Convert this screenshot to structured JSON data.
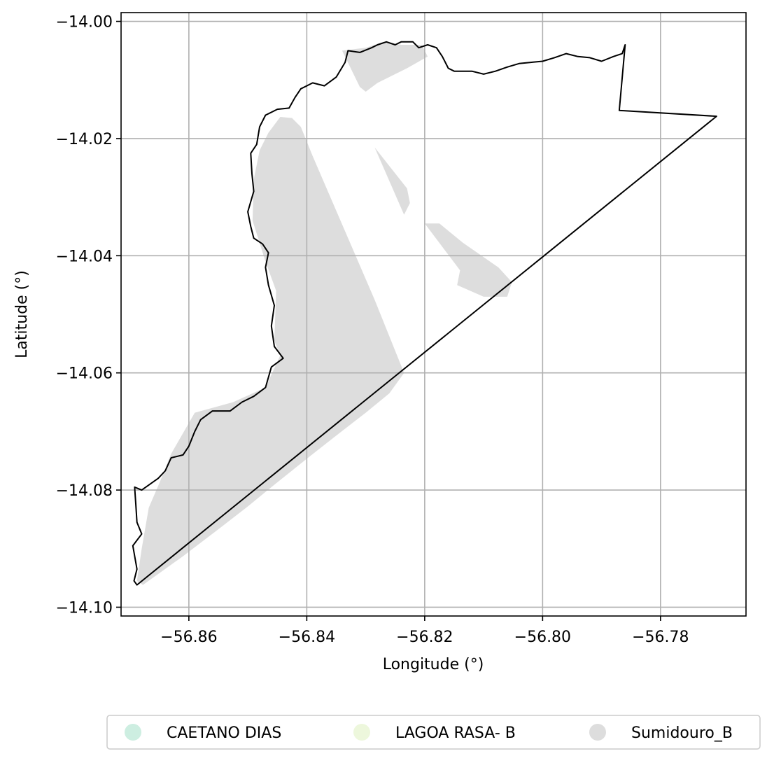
{
  "chart_data": {
    "type": "map",
    "xlabel": "Longitude (°)",
    "ylabel": "Latitude (°)",
    "xlim": [
      -56.8715,
      -56.7655
    ],
    "ylim": [
      -14.1015,
      -13.9985
    ],
    "xticks": [
      -56.86,
      -56.84,
      -56.82,
      -56.8,
      -56.78
    ],
    "xtick_labels": [
      "−56.86",
      "−56.84",
      "−56.82",
      "−56.80",
      "−56.78"
    ],
    "yticks": [
      -14.0,
      -14.02,
      -14.04,
      -14.06,
      -14.08,
      -14.1
    ],
    "ytick_labels": [
      "−14.00",
      "−14.02",
      "−14.04",
      "−14.06",
      "−14.08",
      "−14.10"
    ],
    "grid": true,
    "legend_position": "bottom-center",
    "legend": [
      {
        "name": "CAETANO DIAS",
        "color": "#cdeee1"
      },
      {
        "name": "LAGOA RASA- B",
        "color": "#edf7dc"
      },
      {
        "name": "Sumidouro_B",
        "color": "#dddddd"
      }
    ],
    "layers": [
      {
        "name": "Sumidouro_B",
        "kind": "fill",
        "color": "#dddddd",
        "polygons": [
          [
            [
              -56.8688,
              -14.0955
            ],
            [
              -56.8678,
              -14.0962
            ],
            [
              -56.861,
              -14.0913
            ],
            [
              -56.855,
              -14.0867
            ],
            [
              -56.85,
              -14.0828
            ],
            [
              -56.8455,
              -14.0791
            ],
            [
              -56.8398,
              -14.0745
            ],
            [
              -56.835,
              -14.0707
            ],
            [
              -56.83,
              -14.0668
            ],
            [
              -56.826,
              -14.0635
            ],
            [
              -56.8235,
              -14.06
            ],
            [
              -56.8285,
              -14.0475
            ],
            [
              -56.8345,
              -14.0335
            ],
            [
              -56.839,
              -14.023
            ],
            [
              -56.841,
              -14.018
            ],
            [
              -56.8425,
              -14.0165
            ],
            [
              -56.8445,
              -14.0163
            ],
            [
              -56.8465,
              -14.019
            ],
            [
              -56.848,
              -14.022
            ],
            [
              -56.849,
              -14.027
            ],
            [
              -56.8492,
              -14.034
            ],
            [
              -56.847,
              -14.041
            ],
            [
              -56.8452,
              -14.046
            ],
            [
              -56.8455,
              -14.0545
            ],
            [
              -56.8445,
              -14.057
            ],
            [
              -56.847,
              -14.0625
            ],
            [
              -56.8525,
              -14.065
            ],
            [
              -56.859,
              -14.0668
            ],
            [
              -56.863,
              -14.0738
            ],
            [
              -56.865,
              -14.0788
            ],
            [
              -56.8668,
              -14.083
            ],
            [
              -56.868,
              -14.09
            ],
            [
              -56.8688,
              -14.0955
            ]
          ],
          [
            [
              -56.834,
              -14.005
            ],
            [
              -56.83,
              -14.0045
            ],
            [
              -56.827,
              -14.0035
            ],
            [
              -56.824,
              -14.004
            ],
            [
              -56.8205,
              -14.004
            ],
            [
              -56.8195,
              -14.006
            ],
            [
              -56.823,
              -14.008
            ],
            [
              -56.828,
              -14.0105
            ],
            [
              -56.83,
              -14.012
            ],
            [
              -56.831,
              -14.0112
            ]
          ],
          [
            [
              -56.8285,
              -14.0215
            ],
            [
              -56.823,
              -14.0285
            ],
            [
              -56.8225,
              -14.031
            ],
            [
              -56.8235,
              -14.033
            ]
          ],
          [
            [
              -56.82,
              -14.0345
            ],
            [
              -56.814,
              -14.0425
            ],
            [
              -56.8145,
              -14.045
            ],
            [
              -56.81,
              -14.047
            ],
            [
              -56.806,
              -14.047
            ],
            [
              -56.8052,
              -14.0445
            ],
            [
              -56.8075,
              -14.042
            ],
            [
              -56.8135,
              -14.0378
            ],
            [
              -56.8175,
              -14.0345
            ]
          ]
        ]
      },
      {
        "name": "boundary",
        "kind": "outline",
        "color": "#000000",
        "polygons": [
          [
            [
              -56.8692,
              -14.0795
            ],
            [
              -56.868,
              -14.08
            ],
            [
              -56.8652,
              -14.078
            ],
            [
              -56.864,
              -14.0767
            ],
            [
              -56.863,
              -14.0745
            ],
            [
              -56.861,
              -14.074
            ],
            [
              -56.86,
              -14.0725
            ],
            [
              -56.859,
              -14.07
            ],
            [
              -56.858,
              -14.068
            ],
            [
              -56.856,
              -14.0665
            ],
            [
              -56.853,
              -14.0665
            ],
            [
              -56.851,
              -14.065
            ],
            [
              -56.849,
              -14.064
            ],
            [
              -56.847,
              -14.0625
            ],
            [
              -56.846,
              -14.059
            ],
            [
              -56.844,
              -14.0575
            ],
            [
              -56.8455,
              -14.0555
            ],
            [
              -56.846,
              -14.052
            ],
            [
              -56.8455,
              -14.0485
            ],
            [
              -56.8465,
              -14.045
            ],
            [
              -56.847,
              -14.042
            ],
            [
              -56.8465,
              -14.0395
            ],
            [
              -56.8475,
              -14.038
            ],
            [
              -56.849,
              -14.037
            ],
            [
              -56.8495,
              -14.035
            ],
            [
              -56.85,
              -14.0325
            ],
            [
              -56.849,
              -14.029
            ],
            [
              -56.8493,
              -14.026
            ],
            [
              -56.8495,
              -14.0225
            ],
            [
              -56.8485,
              -14.021
            ],
            [
              -56.848,
              -14.018
            ],
            [
              -56.847,
              -14.016
            ],
            [
              -56.845,
              -14.015
            ],
            [
              -56.843,
              -14.0148
            ],
            [
              -56.842,
              -14.013
            ],
            [
              -56.841,
              -14.0115
            ],
            [
              -56.84,
              -14.011
            ],
            [
              -56.839,
              -14.0105
            ],
            [
              -56.837,
              -14.011
            ],
            [
              -56.835,
              -14.0095
            ],
            [
              -56.8335,
              -14.007
            ],
            [
              -56.833,
              -14.005
            ],
            [
              -56.831,
              -14.0053
            ],
            [
              -56.829,
              -14.0045
            ],
            [
              -56.828,
              -14.004
            ],
            [
              -56.8265,
              -14.0035
            ],
            [
              -56.825,
              -14.004
            ],
            [
              -56.824,
              -14.0035
            ],
            [
              -56.822,
              -14.0035
            ],
            [
              -56.821,
              -14.0045
            ],
            [
              -56.8195,
              -14.004
            ],
            [
              -56.818,
              -14.0045
            ],
            [
              -56.817,
              -14.006
            ],
            [
              -56.816,
              -14.008
            ],
            [
              -56.815,
              -14.0085
            ],
            [
              -56.812,
              -14.0085
            ],
            [
              -56.81,
              -14.009
            ],
            [
              -56.808,
              -14.0085
            ],
            [
              -56.806,
              -14.0078
            ],
            [
              -56.804,
              -14.0072
            ],
            [
              -56.802,
              -14.007
            ],
            [
              -56.8,
              -14.0068
            ],
            [
              -56.798,
              -14.0062
            ],
            [
              -56.796,
              -14.0055
            ],
            [
              -56.794,
              -14.006
            ],
            [
              -56.792,
              -14.0062
            ],
            [
              -56.79,
              -14.0068
            ],
            [
              -56.788,
              -14.006
            ],
            [
              -56.7865,
              -14.0055
            ],
            [
              -56.786,
              -14.004
            ],
            [
              -56.787,
              -14.0152
            ],
            [
              -56.7705,
              -14.0162
            ],
            [
              -56.8688,
              -14.0962
            ],
            [
              -56.8693,
              -14.0955
            ],
            [
              -56.8688,
              -14.0935
            ],
            [
              -56.8695,
              -14.0895
            ],
            [
              -56.868,
              -14.0875
            ],
            [
              -56.8688,
              -14.0855
            ],
            [
              -56.869,
              -14.0825
            ],
            [
              -56.8692,
              -14.0795
            ]
          ]
        ]
      }
    ]
  }
}
